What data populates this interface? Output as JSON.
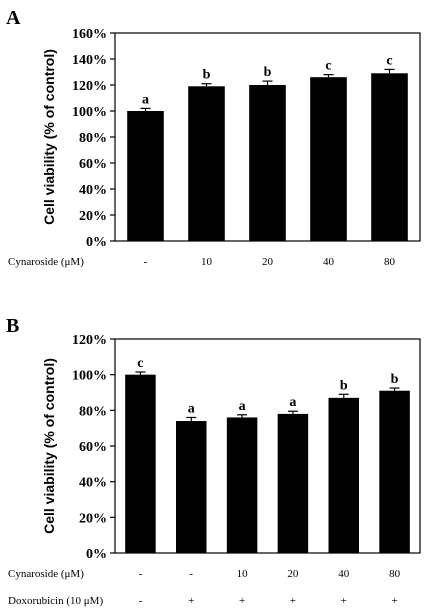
{
  "chart_data": [
    {
      "panel": "A",
      "type": "bar",
      "ylabel": "Cell viability (% of control)",
      "ylim": [
        0,
        160
      ],
      "yticks": [
        0,
        20,
        40,
        60,
        80,
        100,
        120,
        140,
        160
      ],
      "ytick_labels": [
        "0%",
        "20%",
        "40%",
        "60%",
        "80%",
        "100%",
        "120%",
        "140%",
        "160%"
      ],
      "grid": false,
      "color": "#000000",
      "values": [
        100,
        119,
        120,
        126,
        129
      ],
      "errors": [
        2,
        2,
        3,
        2,
        3
      ],
      "significance": [
        "a",
        "b",
        "b",
        "c",
        "c"
      ],
      "condition_rows": [
        {
          "label": "Cynaroside (μM)",
          "values": [
            "-",
            "10",
            "20",
            "40",
            "80"
          ]
        }
      ]
    },
    {
      "panel": "B",
      "type": "bar",
      "ylabel": "Cell viability (% of control)",
      "ylim": [
        0,
        120
      ],
      "yticks": [
        0,
        20,
        40,
        60,
        80,
        100,
        120
      ],
      "ytick_labels": [
        "0%",
        "20%",
        "40%",
        "60%",
        "80%",
        "100%",
        "120%"
      ],
      "grid": false,
      "color": "#000000",
      "values": [
        100,
        74,
        76,
        78,
        87,
        91
      ],
      "errors": [
        1.5,
        2,
        1.5,
        1.5,
        2,
        1.5
      ],
      "significance": [
        "c",
        "a",
        "a",
        "a",
        "b",
        "b"
      ],
      "condition_rows": [
        {
          "label": "Cynaroside (μM)",
          "values": [
            "-",
            "-",
            "10",
            "20",
            "40",
            "80"
          ]
        },
        {
          "label": "Doxorubicin (10 μM)",
          "values": [
            "-",
            "+",
            "+",
            "+",
            "+",
            "+"
          ]
        }
      ]
    }
  ]
}
